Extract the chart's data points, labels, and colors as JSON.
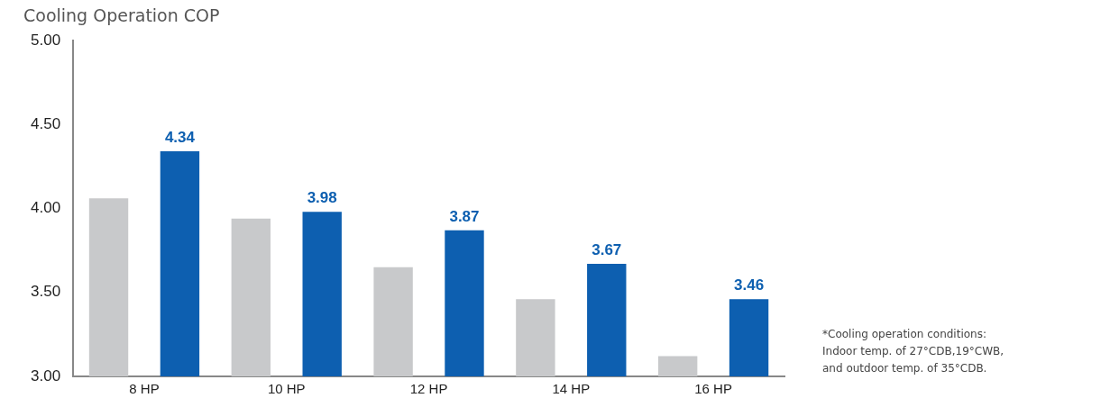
{
  "chart_data": {
    "type": "bar",
    "title": "Cooling Operation COP",
    "categories": [
      "8 HP",
      "10 HP",
      "12 HP",
      "14 HP",
      "16 HP"
    ],
    "series": [
      {
        "color": "#c8c9cb",
        "values": [
          4.06,
          3.94,
          3.65,
          3.46,
          3.12
        ]
      },
      {
        "color": "#0d5fb0",
        "values": [
          4.34,
          3.98,
          3.87,
          3.67,
          3.46
        ],
        "value_labels": [
          "4.34",
          "3.98",
          "3.87",
          "3.67",
          "3.46"
        ]
      }
    ],
    "ylim": [
      3,
      5
    ],
    "yticks": [
      {
        "value": 3,
        "label": "3.00"
      },
      {
        "value": 3.5,
        "label": "3.50"
      },
      {
        "value": 4,
        "label": "4.00"
      },
      {
        "value": 4.5,
        "label": "4.50"
      },
      {
        "value": 5,
        "label": "5.00"
      }
    ],
    "grid": false,
    "legend": false,
    "annotations": [
      "*Cooling operation conditions:\nIndoor temp. of 27°CDB,19°CWB,\nand outdoor temp. of 35°CDB."
    ]
  }
}
